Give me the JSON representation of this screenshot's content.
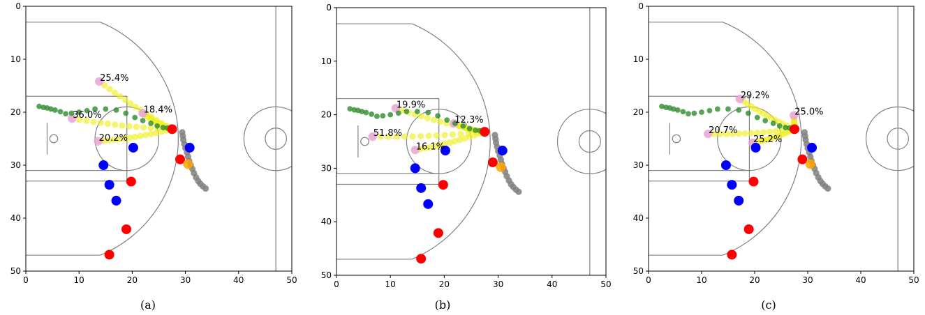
{
  "chart_data": [
    {
      "type": "scatter",
      "caption": "(a)",
      "xlim": [
        0,
        50
      ],
      "ylim": [
        0,
        50
      ],
      "y_inverted": true,
      "x_ticks": [
        "0",
        "10",
        "20",
        "30",
        "40",
        "50"
      ],
      "y_ticks": [
        "0",
        "10",
        "20",
        "30",
        "40",
        "50"
      ],
      "passer": {
        "x": 27.5,
        "y": 23.2
      },
      "ball_path": [
        [
          33.8,
          34.4
        ],
        [
          33.3,
          34.0
        ],
        [
          32.8,
          33.5
        ],
        [
          32.4,
          33.0
        ],
        [
          32.0,
          32.3
        ],
        [
          31.6,
          31.5
        ],
        [
          31.3,
          30.7
        ],
        [
          31.0,
          30.0
        ],
        [
          30.7,
          29.2
        ],
        [
          30.5,
          28.4
        ],
        [
          30.3,
          27.6
        ],
        [
          30.0,
          26.8
        ],
        [
          29.8,
          26.0
        ],
        [
          29.6,
          25.2
        ],
        [
          29.5,
          24.5
        ],
        [
          29.4,
          23.8
        ]
      ],
      "teammates": [
        [
          30.5,
          29.8
        ]
      ],
      "offense": [
        [
          29.0,
          28.9
        ],
        [
          19.8,
          33.1
        ],
        [
          18.9,
          42.1
        ],
        [
          15.7,
          46.9
        ]
      ],
      "defense": [
        [
          20.2,
          26.7
        ],
        [
          30.8,
          26.7
        ],
        [
          14.6,
          30.0
        ],
        [
          15.7,
          33.7
        ],
        [
          17.0,
          36.7
        ]
      ],
      "trajectory": [
        [
          2.5,
          18.9
        ],
        [
          3.3,
          19.1
        ],
        [
          4.0,
          19.2
        ],
        [
          4.7,
          19.4
        ],
        [
          5.5,
          19.6
        ],
        [
          6.5,
          19.9
        ],
        [
          7.5,
          20.3
        ],
        [
          8.6,
          20.2
        ],
        [
          10.0,
          20.0
        ],
        [
          11.5,
          19.7
        ],
        [
          13.0,
          19.4
        ],
        [
          15.0,
          19.4
        ],
        [
          17.0,
          19.6
        ],
        [
          18.8,
          20.2
        ],
        [
          20.5,
          21.0
        ],
        [
          22.0,
          21.6
        ],
        [
          23.5,
          22.1
        ],
        [
          24.7,
          22.6
        ],
        [
          25.8,
          22.9
        ],
        [
          26.6,
          23.0
        ]
      ],
      "options": [
        {
          "label": "25.4%",
          "x": 13.8,
          "y": 14.2
        },
        {
          "label": "36.0%",
          "x": 8.7,
          "y": 21.2
        },
        {
          "label": "18.4%",
          "x": 22.0,
          "y": 20.2
        },
        {
          "label": "20.2%",
          "x": 13.6,
          "y": 25.5
        }
      ]
    },
    {
      "type": "scatter",
      "caption": "(b)",
      "xlim": [
        0,
        50
      ],
      "ylim": [
        0,
        50
      ],
      "y_inverted": true,
      "x_ticks": [
        "0",
        "10",
        "20",
        "30",
        "40",
        "50"
      ],
      "y_ticks": [
        "0",
        "10",
        "20",
        "30",
        "40",
        "50"
      ],
      "passer": {
        "x": 27.5,
        "y": 23.2
      },
      "ball_path": [
        [
          33.8,
          34.4
        ],
        [
          33.3,
          34.0
        ],
        [
          32.8,
          33.5
        ],
        [
          32.4,
          33.0
        ],
        [
          32.0,
          32.3
        ],
        [
          31.6,
          31.5
        ],
        [
          31.3,
          30.7
        ],
        [
          31.0,
          30.0
        ],
        [
          30.7,
          29.2
        ],
        [
          30.5,
          28.4
        ],
        [
          30.3,
          27.6
        ],
        [
          30.0,
          26.8
        ],
        [
          29.8,
          26.0
        ],
        [
          29.6,
          25.2
        ],
        [
          29.5,
          24.5
        ],
        [
          29.4,
          23.8
        ]
      ],
      "teammates": [
        [
          30.5,
          29.8
        ]
      ],
      "offense": [
        [
          29.0,
          28.9
        ],
        [
          19.8,
          33.1
        ],
        [
          18.9,
          42.1
        ],
        [
          15.7,
          46.9
        ]
      ],
      "defense": [
        [
          20.2,
          26.7
        ],
        [
          30.8,
          26.7
        ],
        [
          14.6,
          30.0
        ],
        [
          15.7,
          33.7
        ],
        [
          17.0,
          36.7
        ]
      ],
      "trajectory": [
        [
          2.5,
          18.9
        ],
        [
          3.3,
          19.1
        ],
        [
          4.0,
          19.2
        ],
        [
          4.7,
          19.4
        ],
        [
          5.5,
          19.6
        ],
        [
          6.5,
          19.9
        ],
        [
          7.5,
          20.3
        ],
        [
          8.6,
          20.2
        ],
        [
          10.0,
          20.0
        ],
        [
          11.5,
          19.7
        ],
        [
          13.0,
          19.4
        ],
        [
          15.0,
          19.4
        ],
        [
          17.0,
          19.6
        ],
        [
          18.8,
          20.2
        ],
        [
          20.5,
          21.0
        ],
        [
          22.0,
          21.6
        ],
        [
          23.5,
          22.1
        ],
        [
          24.7,
          22.6
        ],
        [
          25.8,
          22.9
        ],
        [
          26.6,
          23.0
        ]
      ],
      "options": [
        {
          "label": "19.9%",
          "x": 11.0,
          "y": 18.8
        },
        {
          "label": "12.3%",
          "x": 21.8,
          "y": 21.6
        },
        {
          "label": "51.8%",
          "x": 6.7,
          "y": 24.1
        },
        {
          "label": "16.1%",
          "x": 14.6,
          "y": 26.6
        }
      ]
    },
    {
      "type": "scatter",
      "caption": "(c)",
      "xlim": [
        0,
        50
      ],
      "ylim": [
        0,
        50
      ],
      "y_inverted": true,
      "x_ticks": [
        "0",
        "10",
        "20",
        "30",
        "40",
        "50"
      ],
      "y_ticks": [
        "0",
        "10",
        "20",
        "30",
        "40",
        "50"
      ],
      "passer": {
        "x": 27.5,
        "y": 23.2
      },
      "ball_path": [
        [
          33.8,
          34.4
        ],
        [
          33.3,
          34.0
        ],
        [
          32.8,
          33.5
        ],
        [
          32.4,
          33.0
        ],
        [
          32.0,
          32.3
        ],
        [
          31.6,
          31.5
        ],
        [
          31.3,
          30.7
        ],
        [
          31.0,
          30.0
        ],
        [
          30.7,
          29.2
        ],
        [
          30.5,
          28.4
        ],
        [
          30.3,
          27.6
        ],
        [
          30.0,
          26.8
        ],
        [
          29.8,
          26.0
        ],
        [
          29.6,
          25.2
        ],
        [
          29.5,
          24.5
        ],
        [
          29.4,
          23.8
        ]
      ],
      "teammates": [
        [
          30.5,
          29.8
        ]
      ],
      "offense": [
        [
          29.0,
          28.9
        ],
        [
          19.8,
          33.1
        ],
        [
          18.9,
          42.1
        ],
        [
          15.7,
          46.9
        ]
      ],
      "defense": [
        [
          20.2,
          26.7
        ],
        [
          30.8,
          26.7
        ],
        [
          14.6,
          30.0
        ],
        [
          15.7,
          33.7
        ],
        [
          17.0,
          36.7
        ]
      ],
      "trajectory": [
        [
          2.5,
          18.9
        ],
        [
          3.3,
          19.1
        ],
        [
          4.0,
          19.2
        ],
        [
          4.7,
          19.4
        ],
        [
          5.5,
          19.6
        ],
        [
          6.5,
          19.9
        ],
        [
          7.5,
          20.3
        ],
        [
          8.6,
          20.2
        ],
        [
          10.0,
          20.0
        ],
        [
          11.5,
          19.7
        ],
        [
          13.0,
          19.4
        ],
        [
          15.0,
          19.4
        ],
        [
          17.0,
          19.6
        ],
        [
          18.8,
          20.2
        ],
        [
          20.5,
          21.0
        ],
        [
          22.0,
          21.6
        ],
        [
          23.5,
          22.1
        ],
        [
          24.7,
          22.6
        ],
        [
          25.8,
          22.9
        ],
        [
          26.6,
          23.0
        ]
      ],
      "options": [
        {
          "label": "29.2%",
          "x": 17.2,
          "y": 17.5
        },
        {
          "label": "25.0%",
          "x": 27.4,
          "y": 20.6
        },
        {
          "label": "20.7%",
          "x": 11.2,
          "y": 24.1
        },
        {
          "label": "25.2%",
          "x": 19.6,
          "y": 25.8
        }
      ]
    }
  ],
  "colors": {
    "offense": "#ff0000",
    "defense": "#0000ff",
    "teammate": "#ffa500",
    "ball_path": "#808080",
    "trajectory": "#2e8b2e",
    "pass_option": "#eeee22",
    "option_marker": "#e8a0e8",
    "court_line": "#808080"
  }
}
